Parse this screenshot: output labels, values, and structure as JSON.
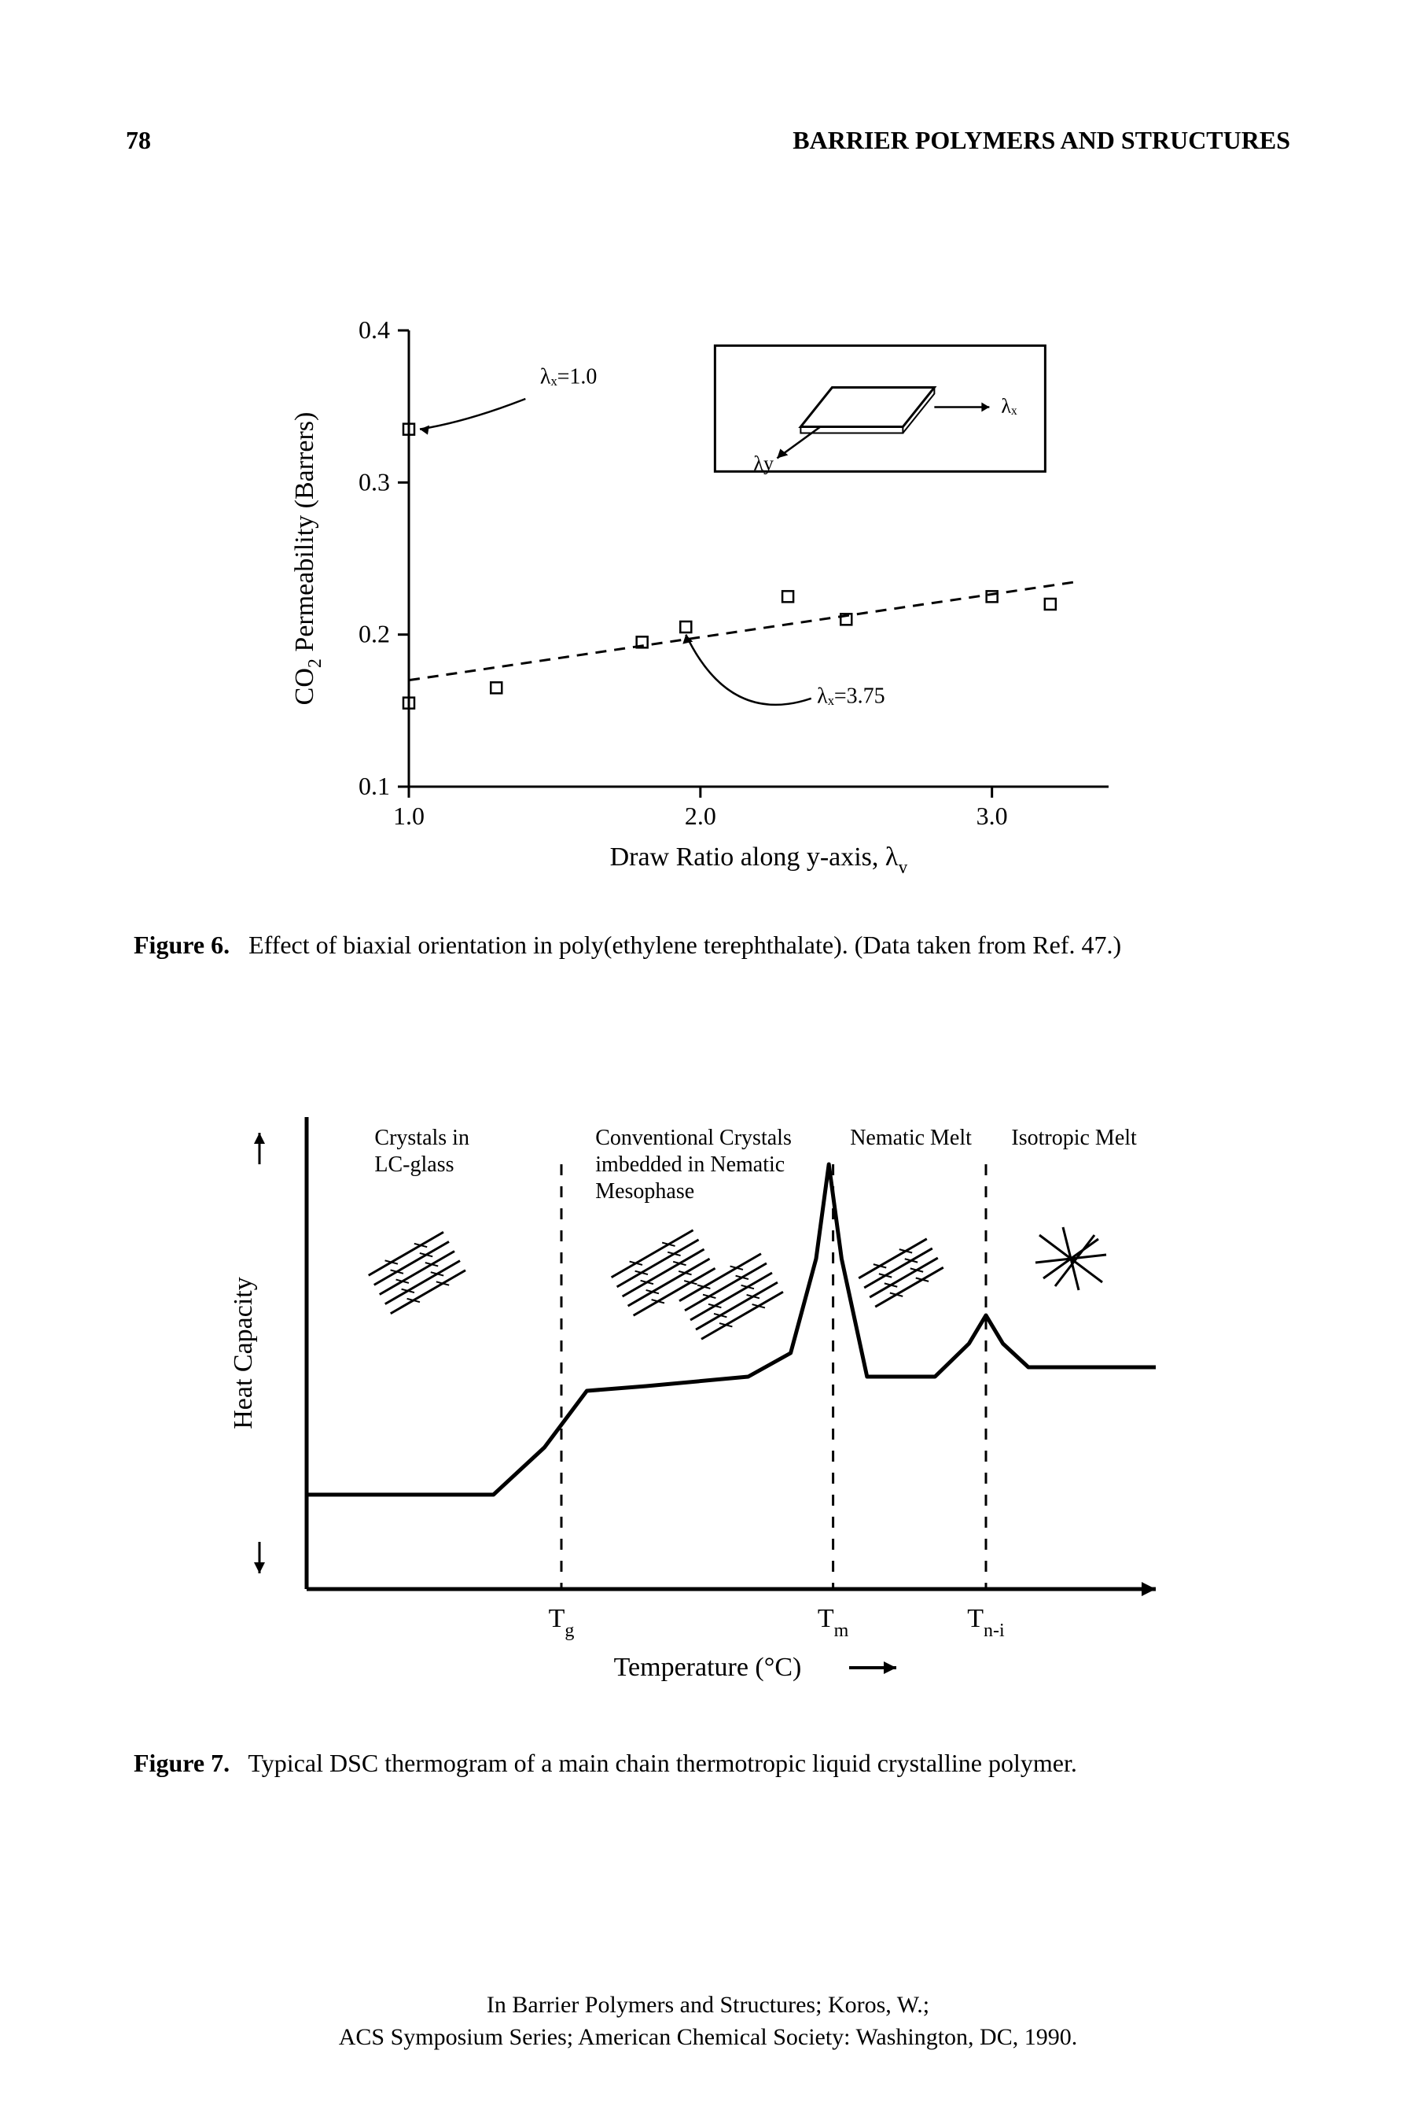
{
  "header": {
    "page_number": "78",
    "running_title": "BARRIER POLYMERS AND STRUCTURES"
  },
  "figure6": {
    "type": "scatter",
    "y_label": "CO₂ Permeability (Barrers)",
    "x_label": "Draw Ratio along y-axis, λ",
    "y_label_sub": "y",
    "x_ticks": [
      1.0,
      2.0,
      3.0
    ],
    "y_ticks": [
      0.1,
      0.2,
      0.3,
      0.4
    ],
    "xlim": [
      1.0,
      3.4
    ],
    "ylim": [
      0.1,
      0.4
    ],
    "annotation_top": "λₓ=1.0",
    "annotation_bottom": "λₓ=3.75",
    "inset_label_x": "λₓ",
    "inset_label_y": "λy",
    "points_lambda1": [
      {
        "x": 1.0,
        "y": 0.335
      }
    ],
    "points_lambda375": [
      {
        "x": 1.0,
        "y": 0.155
      },
      {
        "x": 1.3,
        "y": 0.165
      },
      {
        "x": 1.8,
        "y": 0.195
      },
      {
        "x": 1.95,
        "y": 0.205
      },
      {
        "x": 2.3,
        "y": 0.225
      },
      {
        "x": 2.5,
        "y": 0.21
      },
      {
        "x": 3.0,
        "y": 0.225
      },
      {
        "x": 3.2,
        "y": 0.22
      }
    ],
    "trend_line": {
      "x1": 1.0,
      "y1": 0.17,
      "x2": 3.3,
      "y2": 0.235
    },
    "marker_color": "#000000",
    "marker_size": 14,
    "line_color": "#000000",
    "axis_color": "#000000",
    "background": "#ffffff",
    "caption_prefix": "Figure 6.",
    "caption_text": "Effect of biaxial orientation in poly(ethylene terephthalate). (Data taken from Ref. 47.)"
  },
  "figure7": {
    "type": "line",
    "y_axis_label": "Heat Capacity",
    "x_axis_label": "Temperature (°C)",
    "region_labels": {
      "r1_l1": "Crystals in",
      "r1_l2": "LC-glass",
      "r2_l1": "Conventional Crystals",
      "r2_l2": "imbedded in Nematic",
      "r2_l3": "Mesophase",
      "r3": "Nematic Melt",
      "r4": "Isotropic Melt"
    },
    "x_tick_labels": {
      "tg": "T",
      "tg_sub": "g",
      "tm": "T",
      "tm_sub": "m",
      "tni": "T",
      "tni_sub": "n-i"
    },
    "transition_x": {
      "tg": 0.3,
      "tm": 0.62,
      "tni": 0.8
    },
    "curve": [
      {
        "x": 0.0,
        "y": 0.8
      },
      {
        "x": 0.22,
        "y": 0.8
      },
      {
        "x": 0.28,
        "y": 0.7
      },
      {
        "x": 0.33,
        "y": 0.58
      },
      {
        "x": 0.4,
        "y": 0.57
      },
      {
        "x": 0.52,
        "y": 0.55
      },
      {
        "x": 0.57,
        "y": 0.5
      },
      {
        "x": 0.6,
        "y": 0.3
      },
      {
        "x": 0.615,
        "y": 0.1
      },
      {
        "x": 0.63,
        "y": 0.3
      },
      {
        "x": 0.66,
        "y": 0.55
      },
      {
        "x": 0.74,
        "y": 0.55
      },
      {
        "x": 0.78,
        "y": 0.48
      },
      {
        "x": 0.8,
        "y": 0.42
      },
      {
        "x": 0.82,
        "y": 0.48
      },
      {
        "x": 0.85,
        "y": 0.53
      },
      {
        "x": 1.0,
        "y": 0.53
      }
    ],
    "axis_color": "#000000",
    "curve_color": "#000000",
    "background": "#ffffff",
    "caption_prefix": "Figure 7.",
    "caption_text": "Typical DSC thermogram of a main chain thermotropic liquid crystalline polymer."
  },
  "footer": {
    "line1": "In Barrier Polymers and Structures; Koros, W.;",
    "line2": "ACS Symposium Series; American Chemical Society: Washington, DC, 1990."
  }
}
